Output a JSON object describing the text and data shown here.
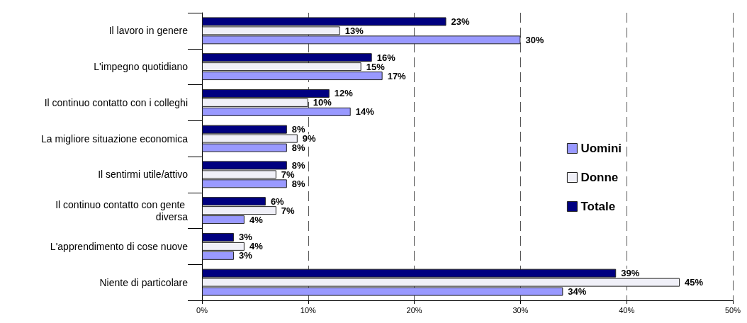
{
  "chart_data": {
    "type": "bar",
    "orientation": "horizontal",
    "categories": [
      "Il lavoro in genere",
      "L'impegno quotidiano",
      "Il continuo contatto con i colleghi",
      "La migliore situazione economica",
      "Il sentirmi utile/attivo",
      "Il continuo contatto con gente diversa",
      "L'apprendimento di cose nuove",
      "Niente di particolare"
    ],
    "series": [
      {
        "name": "Uomini",
        "color": "#9999ff",
        "values": [
          30,
          17,
          14,
          8,
          8,
          4,
          3,
          34
        ],
        "value_labels": [
          "30%",
          "17%",
          "14%",
          "8%",
          "8%",
          "4%",
          "3%",
          "34%"
        ]
      },
      {
        "name": "Donne",
        "color": "#f0f0f8",
        "values": [
          13,
          15,
          10,
          9,
          7,
          7,
          4,
          45
        ],
        "value_labels": [
          "13%",
          "15%",
          "10%",
          "9%",
          "7%",
          "7%",
          "4%",
          "45%"
        ]
      },
      {
        "name": "Totale",
        "color": "#000080",
        "values": [
          23,
          16,
          12,
          8,
          8,
          6,
          3,
          39
        ],
        "value_labels": [
          "23%",
          "16%",
          "12%",
          "8%",
          "8%",
          "6%",
          "3%",
          "39%"
        ]
      }
    ],
    "xlim": [
      0,
      50
    ],
    "xticks": [
      {
        "value": 0,
        "label": "0%"
      },
      {
        "value": 10,
        "label": "10%"
      },
      {
        "value": 20,
        "label": "20%"
      },
      {
        "value": 30,
        "label": "30%"
      },
      {
        "value": 40,
        "label": "40%"
      },
      {
        "value": 50,
        "label": "50%"
      }
    ],
    "grid": "x",
    "legend": "right"
  }
}
